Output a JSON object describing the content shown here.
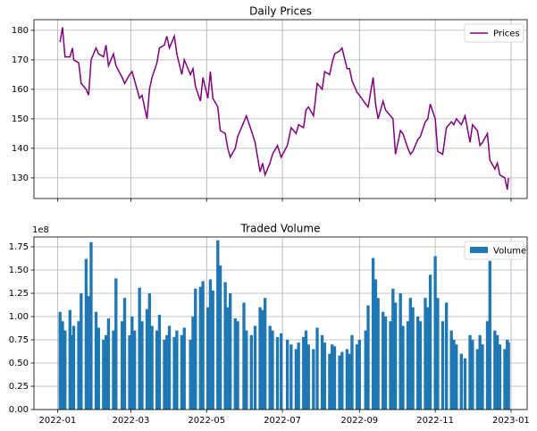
{
  "chart_data": [
    {
      "type": "line",
      "title": "Daily Prices",
      "x": [
        "2022-01-03",
        "2022-01-05",
        "2022-01-07",
        "2022-01-11",
        "2022-01-13",
        "2022-01-14",
        "2022-01-18",
        "2022-01-20",
        "2022-01-24",
        "2022-01-26",
        "2022-01-28",
        "2022-02-01",
        "2022-02-03",
        "2022-02-07",
        "2022-02-09",
        "2022-02-11",
        "2022-02-15",
        "2022-02-17",
        "2022-02-22",
        "2022-02-24",
        "2022-02-28",
        "2022-03-02",
        "2022-03-04",
        "2022-03-08",
        "2022-03-10",
        "2022-03-14",
        "2022-03-16",
        "2022-03-18",
        "2022-03-22",
        "2022-03-24",
        "2022-03-28",
        "2022-03-30",
        "2022-04-01",
        "2022-04-05",
        "2022-04-07",
        "2022-04-11",
        "2022-04-13",
        "2022-04-18",
        "2022-04-20",
        "2022-04-22",
        "2022-04-26",
        "2022-04-28",
        "2022-05-02",
        "2022-05-04",
        "2022-05-06",
        "2022-05-10",
        "2022-05-12",
        "2022-05-16",
        "2022-05-18",
        "2022-05-20",
        "2022-05-24",
        "2022-05-26",
        "2022-05-31",
        "2022-06-02",
        "2022-06-06",
        "2022-06-09",
        "2022-06-13",
        "2022-06-15",
        "2022-06-17",
        "2022-06-21",
        "2022-06-23",
        "2022-06-27",
        "2022-06-30",
        "2022-07-05",
        "2022-07-08",
        "2022-07-12",
        "2022-07-14",
        "2022-07-18",
        "2022-07-20",
        "2022-07-22",
        "2022-07-26",
        "2022-07-29",
        "2022-08-02",
        "2022-08-04",
        "2022-08-08",
        "2022-08-10",
        "2022-08-12",
        "2022-08-16",
        "2022-08-18",
        "2022-08-22",
        "2022-08-24",
        "2022-08-26",
        "2022-08-30",
        "2022-09-01",
        "2022-09-06",
        "2022-09-08",
        "2022-09-12",
        "2022-09-14",
        "2022-09-16",
        "2022-09-20",
        "2022-09-22",
        "2022-09-26",
        "2022-09-28",
        "2022-09-30",
        "2022-10-04",
        "2022-10-06",
        "2022-10-10",
        "2022-10-12",
        "2022-10-14",
        "2022-10-18",
        "2022-10-20",
        "2022-10-24",
        "2022-10-26",
        "2022-10-28",
        "2022-11-01",
        "2022-11-03",
        "2022-11-07",
        "2022-11-10",
        "2022-11-14",
        "2022-11-16",
        "2022-11-18",
        "2022-11-22",
        "2022-11-25",
        "2022-11-29",
        "2022-12-01",
        "2022-12-05",
        "2022-12-07",
        "2022-12-09",
        "2022-12-13",
        "2022-12-15",
        "2022-12-19",
        "2022-12-21",
        "2022-12-23",
        "2022-12-27",
        "2022-12-29",
        "2022-12-30"
      ],
      "series": [
        {
          "name": "Prices",
          "color": "#800080",
          "values": [
            176,
            181,
            171,
            171,
            174,
            170,
            169,
            162,
            160,
            158,
            170,
            174,
            172,
            171,
            175,
            168,
            172,
            168,
            164,
            162,
            165,
            166,
            163,
            157,
            158,
            150,
            160,
            164,
            169,
            174,
            175,
            178,
            174,
            178,
            172,
            165,
            170,
            165,
            167,
            161,
            156,
            164,
            157,
            166,
            157,
            154,
            146,
            145,
            140,
            137,
            140,
            144,
            149,
            151,
            146,
            142,
            132,
            135,
            131,
            135,
            138,
            141,
            137,
            141,
            147,
            145,
            148,
            147,
            153,
            154,
            151,
            162,
            160,
            166,
            165,
            169,
            172,
            173,
            174,
            167,
            167,
            163,
            159,
            158,
            155,
            154,
            164,
            155,
            150,
            156,
            153,
            151,
            150,
            138,
            146,
            145,
            140,
            138,
            139,
            143,
            144,
            149,
            150,
            155,
            150,
            139,
            138,
            147,
            149,
            148,
            150,
            148,
            151,
            142,
            148,
            146,
            141,
            142,
            145,
            136,
            133,
            135,
            131,
            130,
            126,
            130
          ]
        }
      ],
      "xlim": [
        "2021-12-13",
        "2023-01-14"
      ],
      "xticks": [
        "2022-01-01",
        "2022-03-01",
        "2022-05-01",
        "2022-07-01",
        "2022-09-01",
        "2022-11-01",
        "2023-01-01"
      ],
      "ylim": [
        123,
        183.6
      ],
      "yticks": [
        130,
        140,
        150,
        160,
        170,
        180
      ],
      "grid": true,
      "legend": "upper right"
    },
    {
      "type": "bar",
      "title": "Traded Volume",
      "offset_label": "1e8",
      "x": [
        "2022-01-03",
        "2022-01-05",
        "2022-01-07",
        "2022-01-11",
        "2022-01-13",
        "2022-01-14",
        "2022-01-18",
        "2022-01-20",
        "2022-01-24",
        "2022-01-26",
        "2022-01-28",
        "2022-02-01",
        "2022-02-03",
        "2022-02-07",
        "2022-02-09",
        "2022-02-11",
        "2022-02-15",
        "2022-02-17",
        "2022-02-22",
        "2022-02-24",
        "2022-02-28",
        "2022-03-02",
        "2022-03-04",
        "2022-03-08",
        "2022-03-10",
        "2022-03-14",
        "2022-03-16",
        "2022-03-18",
        "2022-03-22",
        "2022-03-24",
        "2022-03-28",
        "2022-03-30",
        "2022-04-01",
        "2022-04-05",
        "2022-04-07",
        "2022-04-11",
        "2022-04-13",
        "2022-04-18",
        "2022-04-20",
        "2022-04-22",
        "2022-04-26",
        "2022-04-28",
        "2022-05-02",
        "2022-05-04",
        "2022-05-06",
        "2022-05-10",
        "2022-05-12",
        "2022-05-16",
        "2022-05-18",
        "2022-05-20",
        "2022-05-24",
        "2022-05-26",
        "2022-05-31",
        "2022-06-02",
        "2022-06-06",
        "2022-06-09",
        "2022-06-13",
        "2022-06-15",
        "2022-06-17",
        "2022-06-21",
        "2022-06-23",
        "2022-06-27",
        "2022-06-30",
        "2022-07-05",
        "2022-07-08",
        "2022-07-12",
        "2022-07-14",
        "2022-07-18",
        "2022-07-20",
        "2022-07-22",
        "2022-07-26",
        "2022-07-29",
        "2022-08-02",
        "2022-08-04",
        "2022-08-08",
        "2022-08-10",
        "2022-08-12",
        "2022-08-16",
        "2022-08-18",
        "2022-08-22",
        "2022-08-24",
        "2022-08-26",
        "2022-08-30",
        "2022-09-01",
        "2022-09-06",
        "2022-09-08",
        "2022-09-12",
        "2022-09-14",
        "2022-09-16",
        "2022-09-20",
        "2022-09-22",
        "2022-09-26",
        "2022-09-28",
        "2022-09-30",
        "2022-10-04",
        "2022-10-06",
        "2022-10-10",
        "2022-10-12",
        "2022-10-14",
        "2022-10-18",
        "2022-10-20",
        "2022-10-24",
        "2022-10-26",
        "2022-10-28",
        "2022-11-01",
        "2022-11-03",
        "2022-11-07",
        "2022-11-10",
        "2022-11-14",
        "2022-11-16",
        "2022-11-18",
        "2022-11-22",
        "2022-11-25",
        "2022-11-29",
        "2022-12-01",
        "2022-12-05",
        "2022-12-07",
        "2022-12-09",
        "2022-12-13",
        "2022-12-15",
        "2022-12-19",
        "2022-12-21",
        "2022-12-23",
        "2022-12-27",
        "2022-12-29",
        "2022-12-30"
      ],
      "series": [
        {
          "name": "Volume",
          "color": "#1f77b4",
          "values": [
            1.05,
            0.95,
            0.85,
            1.07,
            0.8,
            0.9,
            0.95,
            1.25,
            1.62,
            1.22,
            1.8,
            1.05,
            0.88,
            0.75,
            0.8,
            0.98,
            0.85,
            1.41,
            0.95,
            1.2,
            0.8,
            1.0,
            0.85,
            1.31,
            0.95,
            1.08,
            1.25,
            0.9,
            0.85,
            1.02,
            0.75,
            0.8,
            0.9,
            0.78,
            0.85,
            0.8,
            0.88,
            0.75,
            1.0,
            1.3,
            1.32,
            1.38,
            1.1,
            1.4,
            1.28,
            1.82,
            1.55,
            1.37,
            1.1,
            1.25,
            0.98,
            0.95,
            1.15,
            0.85,
            0.8,
            0.9,
            1.1,
            1.07,
            1.2,
            0.9,
            0.85,
            0.78,
            0.82,
            0.75,
            0.7,
            0.65,
            0.72,
            0.78,
            0.85,
            0.7,
            0.65,
            0.88,
            0.8,
            0.72,
            0.6,
            0.7,
            0.68,
            0.58,
            0.62,
            0.65,
            0.6,
            0.8,
            0.7,
            0.75,
            0.85,
            1.12,
            1.63,
            1.4,
            1.2,
            1.05,
            1.0,
            0.95,
            1.3,
            1.15,
            1.25,
            0.9,
            0.95,
            1.2,
            1.1,
            1.0,
            0.95,
            1.2,
            1.1,
            1.45,
            1.65,
            1.2,
            0.95,
            1.15,
            0.85,
            0.75,
            0.7,
            0.6,
            0.55,
            0.8,
            0.75,
            0.65,
            0.8,
            0.7,
            0.95,
            1.6,
            0.85,
            0.8,
            0.7,
            0.65,
            0.75,
            0.72
          ]
        }
      ],
      "xlim": [
        "2021-12-13",
        "2023-01-14"
      ],
      "xticks": [
        {
          "value": "2022-01-01",
          "label": "2022-01"
        },
        {
          "value": "2022-03-01",
          "label": "2022-03"
        },
        {
          "value": "2022-05-01",
          "label": "2022-05"
        },
        {
          "value": "2022-07-01",
          "label": "2022-07"
        },
        {
          "value": "2022-09-01",
          "label": "2022-09"
        },
        {
          "value": "2022-11-01",
          "label": "2022-11"
        },
        {
          "value": "2023-01-01",
          "label": "2023-01"
        }
      ],
      "ylim": [
        0,
        1.856
      ],
      "yticks": [
        {
          "value": 0,
          "label": "0.00"
        },
        0.25,
        {
          "value": 0.5,
          "label": "0.50"
        },
        0.75,
        {
          "value": 1,
          "label": "1.00"
        },
        1.25,
        {
          "value": 1.5,
          "label": "1.50"
        },
        1.75
      ],
      "grid": true,
      "legend": "upper right"
    }
  ]
}
